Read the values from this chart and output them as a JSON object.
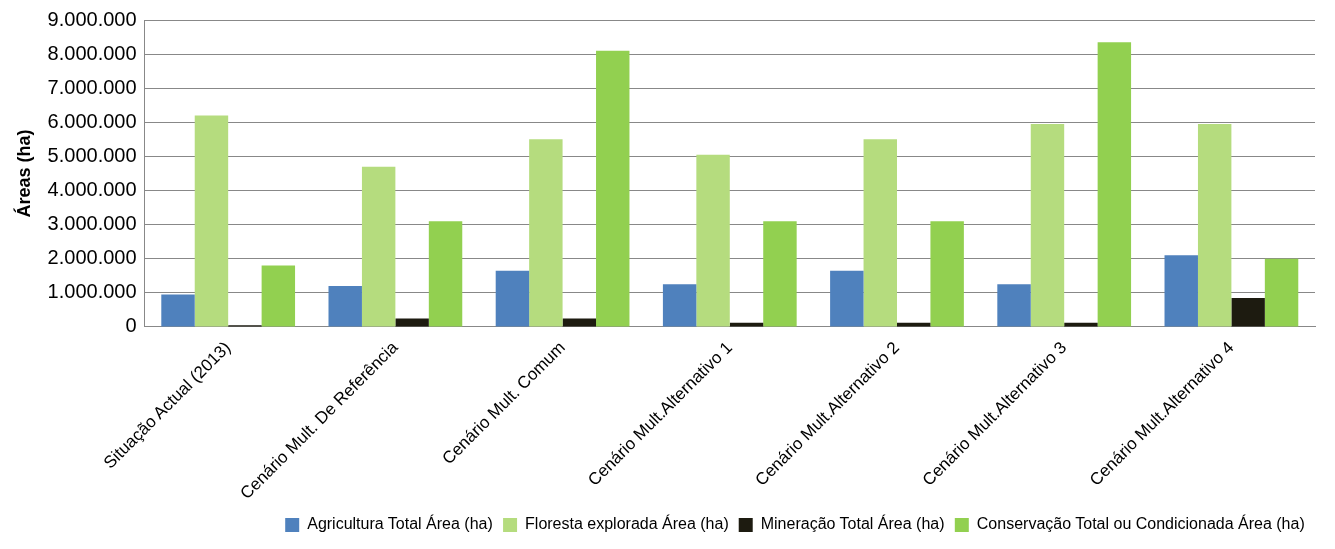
{
  "chart_data": {
    "type": "bar",
    "ylabel": "Áreas (ha)",
    "categories": [
      "Situação Actual (2013)",
      "Cenário Mult. De Referência",
      "Cenário Mult. Comum",
      "Cenário Mult.Alternativo 1",
      "Cenário Mult.Alternativo 2",
      "Cenário Mult.Alternativo 3",
      "Cenário Mult.Alternativo 4"
    ],
    "series": [
      {
        "name": "Agricultura Total Área (ha)",
        "color": "#4f81bd",
        "values": [
          950000,
          1200000,
          1650000,
          1250000,
          1650000,
          1250000,
          2100000
        ]
      },
      {
        "name": "Floresta explorada Área (ha)",
        "color": "#b5dc7e",
        "values": [
          6200000,
          4700000,
          5500000,
          5050000,
          5500000,
          5950000,
          5950000
        ]
      },
      {
        "name": "Mineração Total Área (ha)",
        "color": "#1d1b10",
        "values": [
          50000,
          250000,
          250000,
          120000,
          120000,
          120000,
          850000
        ]
      },
      {
        "name": "Conservação Total ou Condicionada Área (ha)",
        "color": "#92d050",
        "values": [
          1800000,
          3100000,
          8100000,
          3100000,
          3100000,
          8350000,
          2000000
        ]
      }
    ],
    "ylim": [
      0,
      9000000
    ],
    "yticks": [
      {
        "value": 0,
        "label": "0"
      },
      {
        "value": 1000000,
        "label": "1.000.000"
      },
      {
        "value": 2000000,
        "label": "2.000.000"
      },
      {
        "value": 3000000,
        "label": "3.000.000"
      },
      {
        "value": 4000000,
        "label": "4.000.000"
      },
      {
        "value": 5000000,
        "label": "5.000.000"
      },
      {
        "value": 6000000,
        "label": "6.000.000"
      },
      {
        "value": 7000000,
        "label": "7.000.000"
      },
      {
        "value": 8000000,
        "label": "8.000.000"
      },
      {
        "value": 9000000,
        "label": "9.000.000"
      }
    ],
    "grid": "y",
    "legend": "bottom right"
  }
}
